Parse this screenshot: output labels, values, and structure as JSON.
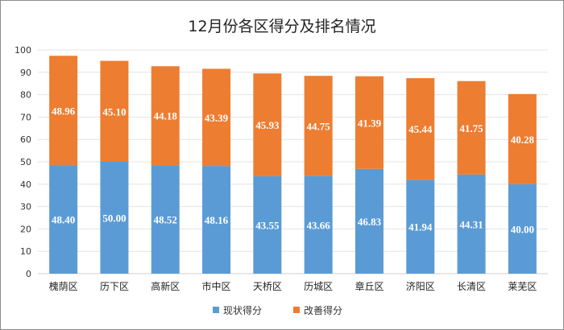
{
  "chart_data": {
    "type": "bar",
    "stacked": true,
    "title": "12月份各区得分及排名情况",
    "xlabel": "",
    "ylabel": "",
    "ylim": [
      0,
      100
    ],
    "yticks": [
      0,
      10,
      20,
      30,
      40,
      50,
      60,
      70,
      80,
      90,
      100
    ],
    "grid": true,
    "legend_position": "bottom",
    "categories": [
      "槐荫区",
      "历下区",
      "高新区",
      "市中区",
      "天桥区",
      "历城区",
      "章丘区",
      "济阳区",
      "长清区",
      "莱芜区"
    ],
    "series": [
      {
        "name": "现状得分",
        "color": "#5b9bd5",
        "values": [
          48.4,
          50.0,
          48.52,
          48.16,
          43.55,
          43.66,
          46.83,
          41.94,
          44.31,
          40.0
        ],
        "labels": [
          "48.40",
          "50.00",
          "48.52",
          "48.16",
          "43.55",
          "43.66",
          "46.83",
          "41.94",
          "44.31",
          "40.00"
        ]
      },
      {
        "name": "改善得分",
        "color": "#ed7d31",
        "values": [
          48.96,
          45.1,
          44.18,
          43.39,
          45.93,
          44.75,
          41.39,
          45.44,
          41.75,
          40.28
        ],
        "labels": [
          "48.96",
          "45.10",
          "44.18",
          "43.39",
          "45.93",
          "44.75",
          "41.39",
          "45.44",
          "41.75",
          "40.28"
        ]
      }
    ]
  }
}
